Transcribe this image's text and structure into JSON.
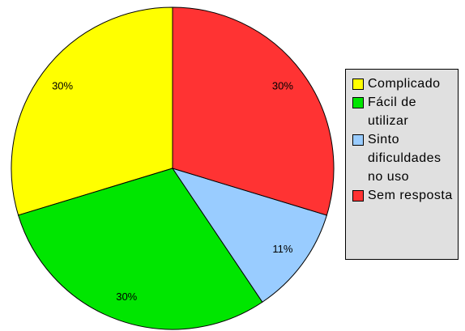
{
  "chart_data": {
    "type": "pie",
    "categories": [
      "Complicado",
      "Fácil de utilizar",
      "Sinto dificuldades no uso",
      "Sem resposta"
    ],
    "values": [
      30,
      30,
      11,
      30
    ],
    "value_labels": [
      "30%",
      "30%",
      "11%",
      "30%"
    ],
    "colors": [
      "#ffff00",
      "#00e600",
      "#99ccff",
      "#ff3333"
    ],
    "legend": "right"
  }
}
